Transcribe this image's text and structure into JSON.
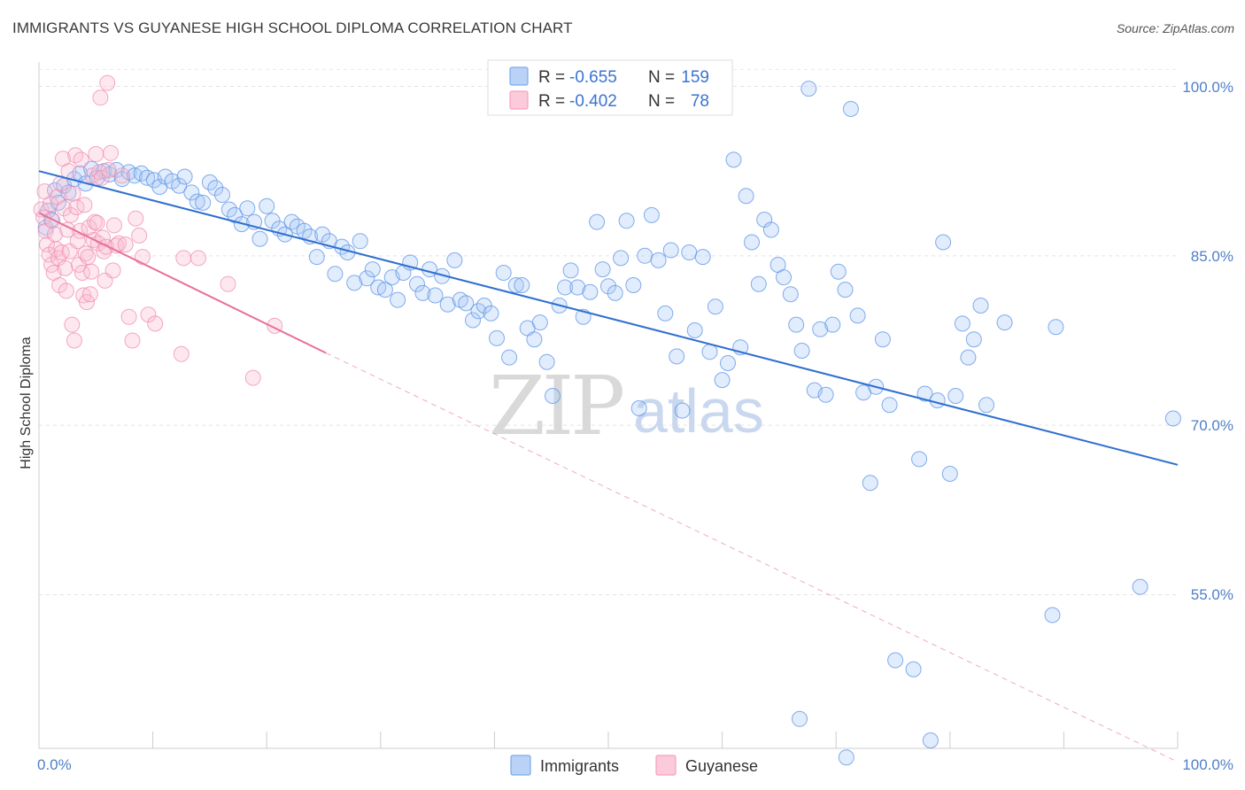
{
  "title": "IMMIGRANTS VS GUYANESE HIGH SCHOOL DIPLOMA CORRELATION CHART",
  "source": "Source: ZipAtlas.com",
  "watermark": {
    "part1": "ZIP",
    "part2": "atlas"
  },
  "legend": {
    "rows": [
      {
        "r_label": "R = ",
        "r_value": "-0.655",
        "n_label": "N = ",
        "n_value": "159",
        "color": "#7aaaf0"
      },
      {
        "r_label": "R = ",
        "r_value": "-0.402",
        "n_label": "N = ",
        "n_value": " 78",
        "color": "#f5a0bd"
      }
    ]
  },
  "bottom_legend": [
    {
      "label": "Immigrants",
      "color": "#7aaaf0"
    },
    {
      "label": "Guyanese",
      "color": "#f5a0bd"
    }
  ],
  "colors": {
    "blue": "#5b93e6",
    "blue_line": "#2f6fd0",
    "pink": "#f08cb0",
    "pink_line": "#e8709a",
    "tick": "#4f7fc9"
  },
  "chart_data": {
    "type": "scatter",
    "title": "IMMIGRANTS VS GUYANESE HIGH SCHOOL DIPLOMA CORRELATION CHART",
    "xlabel": "",
    "ylabel": "High School Diploma",
    "xlim": [
      0,
      100
    ],
    "ylim": [
      40,
      101.5
    ],
    "x_tick_labels": [
      "0.0%",
      "100.0%"
    ],
    "y_ticks": [
      100,
      85,
      70,
      55
    ],
    "y_tick_labels": [
      "100.0%",
      "85.0%",
      "70.0%",
      "55.0%"
    ],
    "grid": true,
    "series": [
      {
        "name": "Immigrants",
        "r": -0.655,
        "n": 159,
        "trend": {
          "x": [
            0,
            100
          ],
          "y": [
            92.5,
            66.5
          ]
        },
        "points": [
          [
            0.6,
            87.5
          ],
          [
            0.8,
            89
          ],
          [
            1.1,
            88.2
          ],
          [
            1.4,
            90.8
          ],
          [
            1.7,
            89.7
          ],
          [
            2.2,
            91.2
          ],
          [
            2.6,
            90.6
          ],
          [
            3.1,
            91.8
          ],
          [
            3.6,
            92.3
          ],
          [
            4.1,
            91.4
          ],
          [
            4.6,
            92.7
          ],
          [
            5.1,
            91.9
          ],
          [
            5.7,
            92.5
          ],
          [
            6.2,
            92.2
          ],
          [
            6.8,
            92.6
          ],
          [
            7.3,
            91.8
          ],
          [
            7.9,
            92.4
          ],
          [
            8.4,
            92.1
          ],
          [
            9,
            92.3
          ],
          [
            9.5,
            91.9
          ],
          [
            10.1,
            91.7
          ],
          [
            10.6,
            91.1
          ],
          [
            11.1,
            92.0
          ],
          [
            11.7,
            91.6
          ],
          [
            12.3,
            91.2
          ],
          [
            12.8,
            92.0
          ],
          [
            13.4,
            90.6
          ],
          [
            13.9,
            89.8
          ],
          [
            14.4,
            89.7
          ],
          [
            15.0,
            91.5
          ],
          [
            15.5,
            91.0
          ],
          [
            16.1,
            90.4
          ],
          [
            16.7,
            89.1
          ],
          [
            17.2,
            88.6
          ],
          [
            17.8,
            87.8
          ],
          [
            18.3,
            89.2
          ],
          [
            18.9,
            88.0
          ],
          [
            19.4,
            86.5
          ],
          [
            20.0,
            89.4
          ],
          [
            20.5,
            88.1
          ],
          [
            21.1,
            87.4
          ],
          [
            21.6,
            86.9
          ],
          [
            22.2,
            88.0
          ],
          [
            22.7,
            87.6
          ],
          [
            23.3,
            87.2
          ],
          [
            23.8,
            86.7
          ],
          [
            24.4,
            84.9
          ],
          [
            24.9,
            86.9
          ],
          [
            25.5,
            86.3
          ],
          [
            26.0,
            83.4
          ],
          [
            26.6,
            85.8
          ],
          [
            27.1,
            85.3
          ],
          [
            27.7,
            82.6
          ],
          [
            28.2,
            86.3
          ],
          [
            28.8,
            83.0
          ],
          [
            29.3,
            83.8
          ],
          [
            29.8,
            82.2
          ],
          [
            30.4,
            82.0
          ],
          [
            31.0,
            83.1
          ],
          [
            31.5,
            81.1
          ],
          [
            32.0,
            83.5
          ],
          [
            32.6,
            84.4
          ],
          [
            33.2,
            82.5
          ],
          [
            33.7,
            81.7
          ],
          [
            34.3,
            83.8
          ],
          [
            34.8,
            81.5
          ],
          [
            35.4,
            83.2
          ],
          [
            35.9,
            80.7
          ],
          [
            36.5,
            84.6
          ],
          [
            37.0,
            81.1
          ],
          [
            37.5,
            80.8
          ],
          [
            38.1,
            79.3
          ],
          [
            38.6,
            80.1
          ],
          [
            39.1,
            80.6
          ],
          [
            39.7,
            79.9
          ],
          [
            40.2,
            77.7
          ],
          [
            40.8,
            83.5
          ],
          [
            41.3,
            76.0
          ],
          [
            41.9,
            82.4
          ],
          [
            42.4,
            82.4
          ],
          [
            42.9,
            78.6
          ],
          [
            43.5,
            77.6
          ],
          [
            44.0,
            79.1
          ],
          [
            44.6,
            75.6
          ],
          [
            45.1,
            72.6
          ],
          [
            45.7,
            80.6
          ],
          [
            46.2,
            82.2
          ],
          [
            46.7,
            83.7
          ],
          [
            47.3,
            82.2
          ],
          [
            47.8,
            79.6
          ],
          [
            48.4,
            81.8
          ],
          [
            49.0,
            88.0
          ],
          [
            49.5,
            83.8
          ],
          [
            50.0,
            82.3
          ],
          [
            50.6,
            81.7
          ],
          [
            51.1,
            84.8
          ],
          [
            51.6,
            88.1
          ],
          [
            52.2,
            82.4
          ],
          [
            52.7,
            71.5
          ],
          [
            53.2,
            85.0
          ],
          [
            53.8,
            88.6
          ],
          [
            54.4,
            84.6
          ],
          [
            55.0,
            79.9
          ],
          [
            55.5,
            85.5
          ],
          [
            56.0,
            76.1
          ],
          [
            56.5,
            71.3
          ],
          [
            57.1,
            85.3
          ],
          [
            57.6,
            78.4
          ],
          [
            58.3,
            84.9
          ],
          [
            58.9,
            76.5
          ],
          [
            59.4,
            80.5
          ],
          [
            60.0,
            74.0
          ],
          [
            60.5,
            75.5
          ],
          [
            61.0,
            93.5
          ],
          [
            61.6,
            76.9
          ],
          [
            62.1,
            90.3
          ],
          [
            62.6,
            86.2
          ],
          [
            63.2,
            82.5
          ],
          [
            63.7,
            88.2
          ],
          [
            64.3,
            87.3
          ],
          [
            64.9,
            84.2
          ],
          [
            65.4,
            83.1
          ],
          [
            66.0,
            81.6
          ],
          [
            66.5,
            78.9
          ],
          [
            67.0,
            76.6
          ],
          [
            67.6,
            99.8
          ],
          [
            68.1,
            73.1
          ],
          [
            68.6,
            78.5
          ],
          [
            69.1,
            72.7
          ],
          [
            69.7,
            78.9
          ],
          [
            70.2,
            83.6
          ],
          [
            70.8,
            82.0
          ],
          [
            71.3,
            98.0
          ],
          [
            71.9,
            79.7
          ],
          [
            72.4,
            72.9
          ],
          [
            73.0,
            64.9
          ],
          [
            73.5,
            73.4
          ],
          [
            74.1,
            77.6
          ],
          [
            74.7,
            71.8
          ],
          [
            75.2,
            49.2
          ],
          [
            76.8,
            48.4
          ],
          [
            77.3,
            67.0
          ],
          [
            77.8,
            72.8
          ],
          [
            78.3,
            42.1
          ],
          [
            78.9,
            72.2
          ],
          [
            79.4,
            86.2
          ],
          [
            80.0,
            65.7
          ],
          [
            80.5,
            72.6
          ],
          [
            81.1,
            79.0
          ],
          [
            81.6,
            76.0
          ],
          [
            82.1,
            77.6
          ],
          [
            82.7,
            80.6
          ],
          [
            83.2,
            71.8
          ],
          [
            84.8,
            79.1
          ],
          [
            89.3,
            78.7
          ],
          [
            89.0,
            53.2
          ],
          [
            96.7,
            55.7
          ],
          [
            99.6,
            70.6
          ],
          [
            66.8,
            44.0
          ],
          [
            70.9,
            40.6
          ]
        ]
      },
      {
        "name": "Guyanese",
        "r": -0.402,
        "n": 78,
        "trend": {
          "x": [
            0,
            25.2
          ],
          "y": [
            88.8,
            76.4
          ],
          "dashed_x": [
            25.2,
            100
          ],
          "dashed_y": [
            76.4,
            40.2
          ]
        },
        "points": [
          [
            0.2,
            89.1
          ],
          [
            0.4,
            88.4
          ],
          [
            0.5,
            90.7
          ],
          [
            0.6,
            87.2
          ],
          [
            0.7,
            86.0
          ],
          [
            0.9,
            85.1
          ],
          [
            1.0,
            89.6
          ],
          [
            1.1,
            84.2
          ],
          [
            1.2,
            88.1
          ],
          [
            1.3,
            83.5
          ],
          [
            1.4,
            86.9
          ],
          [
            1.5,
            85.6
          ],
          [
            1.6,
            90.2
          ],
          [
            1.7,
            84.8
          ],
          [
            1.8,
            82.4
          ],
          [
            1.9,
            91.4
          ],
          [
            2.0,
            85.3
          ],
          [
            2.1,
            93.6
          ],
          [
            2.2,
            89.2
          ],
          [
            2.3,
            83.9
          ],
          [
            2.4,
            81.9
          ],
          [
            2.5,
            87.3
          ],
          [
            2.6,
            92.5
          ],
          [
            2.7,
            85.4
          ],
          [
            2.8,
            88.6
          ],
          [
            2.9,
            78.9
          ],
          [
            3.0,
            90.5
          ],
          [
            3.1,
            77.5
          ],
          [
            3.2,
            93.9
          ],
          [
            3.3,
            89.3
          ],
          [
            3.4,
            86.3
          ],
          [
            3.5,
            84.2
          ],
          [
            3.6,
            87.2
          ],
          [
            3.7,
            93.5
          ],
          [
            3.8,
            83.5
          ],
          [
            3.9,
            81.5
          ],
          [
            4.0,
            89.5
          ],
          [
            4.1,
            85.2
          ],
          [
            4.2,
            80.9
          ],
          [
            4.3,
            84.9
          ],
          [
            4.4,
            87.5
          ],
          [
            4.5,
            81.6
          ],
          [
            4.6,
            83.6
          ],
          [
            4.7,
            92.1
          ],
          [
            4.8,
            86.4
          ],
          [
            4.9,
            88.0
          ],
          [
            5.0,
            94.0
          ],
          [
            5.1,
            87.9
          ],
          [
            5.2,
            86.1
          ],
          [
            5.3,
            92.4
          ],
          [
            5.4,
            99.0
          ],
          [
            5.5,
            91.9
          ],
          [
            5.6,
            86.6
          ],
          [
            5.7,
            85.4
          ],
          [
            5.8,
            82.8
          ],
          [
            5.9,
            85.8
          ],
          [
            6.0,
            100.3
          ],
          [
            6.1,
            92.6
          ],
          [
            6.3,
            94.1
          ],
          [
            6.5,
            83.7
          ],
          [
            6.6,
            87.7
          ],
          [
            6.8,
            85.9
          ],
          [
            7.0,
            86.1
          ],
          [
            7.3,
            92.1
          ],
          [
            7.6,
            86.0
          ],
          [
            7.9,
            79.6
          ],
          [
            8.2,
            77.5
          ],
          [
            8.5,
            88.3
          ],
          [
            8.8,
            86.8
          ],
          [
            9.1,
            84.9
          ],
          [
            9.6,
            79.8
          ],
          [
            10.2,
            79.0
          ],
          [
            12.5,
            76.3
          ],
          [
            12.7,
            84.8
          ],
          [
            14.0,
            84.8
          ],
          [
            16.6,
            82.5
          ],
          [
            18.8,
            74.2
          ],
          [
            20.7,
            78.8
          ]
        ]
      }
    ]
  }
}
